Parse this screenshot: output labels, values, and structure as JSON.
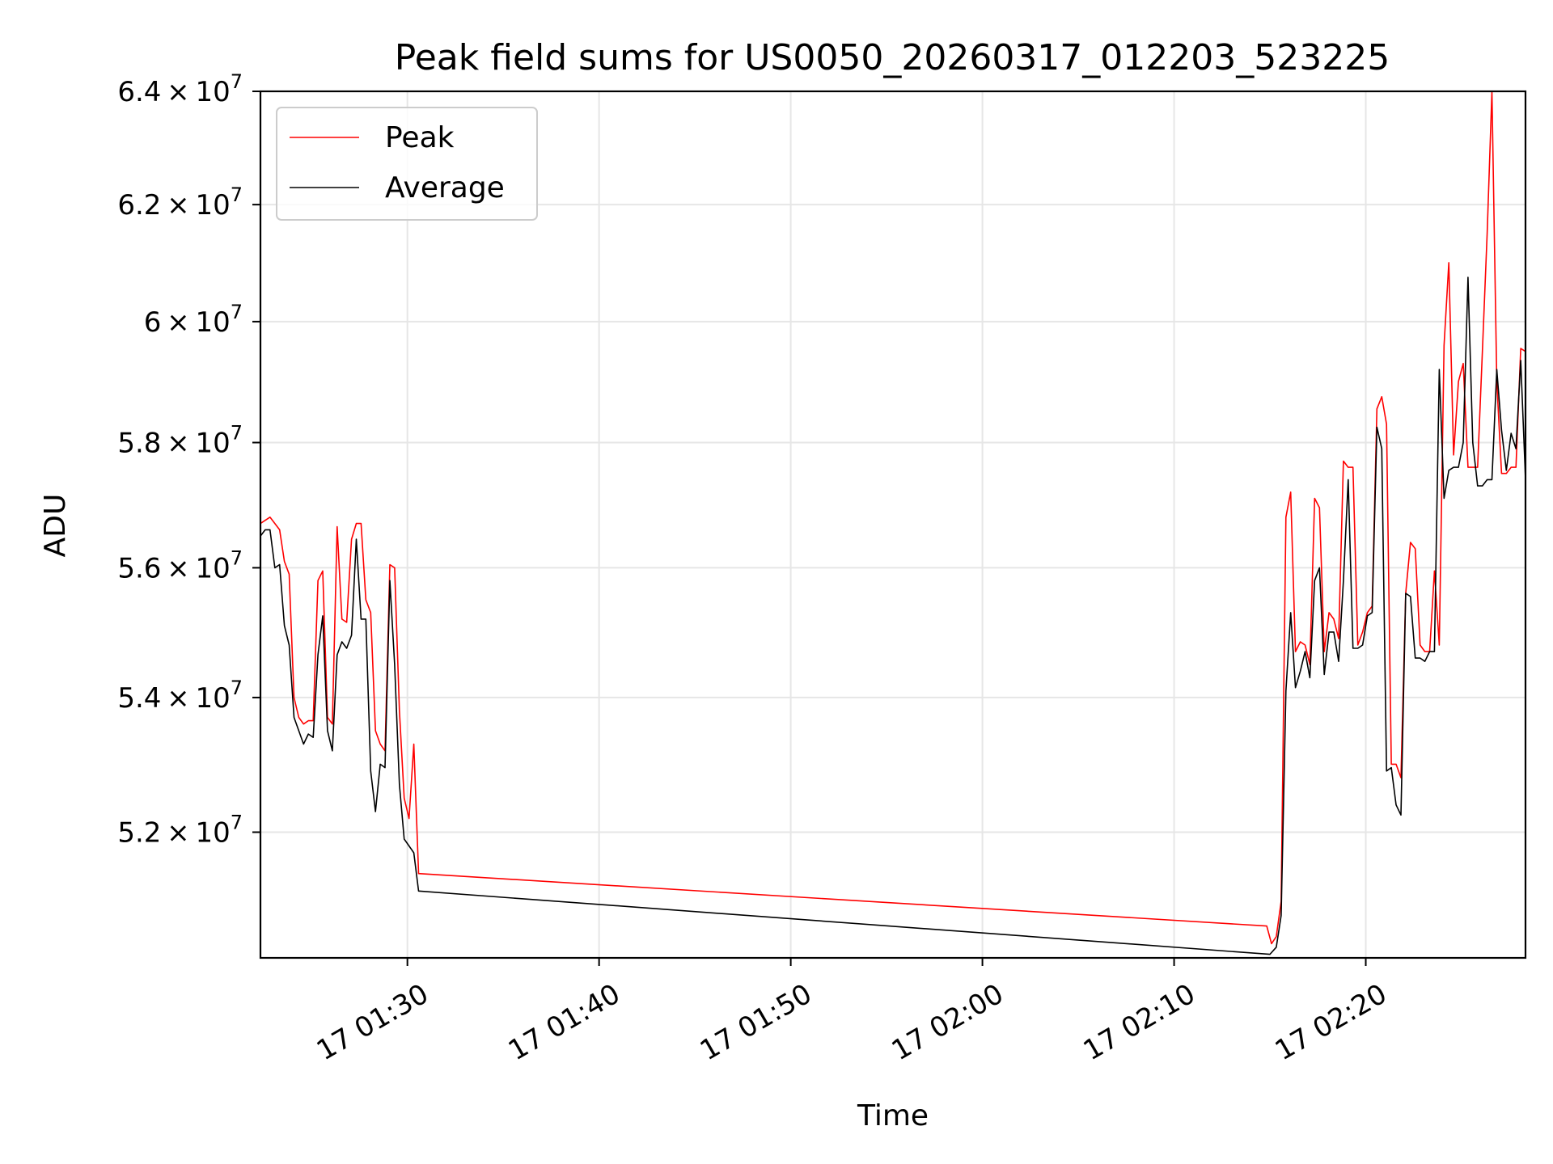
{
  "chart_data": {
    "type": "line",
    "title": "Peak field sums for US0050_20260317_012203_523225",
    "xlabel": "Time",
    "ylabel": "ADU",
    "y_scale": "log",
    "ylim": [
      50200000,
      64000000
    ],
    "xlim": [
      "2026-03-17T01:22:20",
      "2026-03-17T02:28:20"
    ],
    "x_ticks": [
      {
        "value": "2026-03-17T01:30:00",
        "label": "17 01:30"
      },
      {
        "value": "2026-03-17T01:40:00",
        "label": "17 01:40"
      },
      {
        "value": "2026-03-17T01:50:00",
        "label": "17 01:50"
      },
      {
        "value": "2026-03-17T02:00:00",
        "label": "17 02:00"
      },
      {
        "value": "2026-03-17T02:10:00",
        "label": "17 02:10"
      },
      {
        "value": "2026-03-17T02:20:00",
        "label": "17 02:20"
      }
    ],
    "y_ticks": [
      {
        "value": 52000000,
        "mantissa": "5.2",
        "exponent": "7"
      },
      {
        "value": 54000000,
        "mantissa": "5.4",
        "exponent": "7"
      },
      {
        "value": 56000000,
        "mantissa": "5.6",
        "exponent": "7"
      },
      {
        "value": 58000000,
        "mantissa": "5.8",
        "exponent": "7"
      },
      {
        "value": 60000000,
        "mantissa": "6",
        "exponent": "7"
      },
      {
        "value": 62000000,
        "mantissa": "6.2",
        "exponent": "7"
      },
      {
        "value": 64000000,
        "mantissa": "6.4",
        "exponent": "7"
      }
    ],
    "grid": true,
    "legend_position": "top-left",
    "series": [
      {
        "name": "Peak",
        "color": "#ff0000",
        "points": [
          [
            "2026-03-17T01:22:20",
            56700000
          ],
          [
            "2026-03-17T01:22:35",
            56750000
          ],
          [
            "2026-03-17T01:22:50",
            56800000
          ],
          [
            "2026-03-17T01:23:05",
            56700000
          ],
          [
            "2026-03-17T01:23:20",
            56600000
          ],
          [
            "2026-03-17T01:23:35",
            56100000
          ],
          [
            "2026-03-17T01:23:50",
            55900000
          ],
          [
            "2026-03-17T01:24:05",
            54000000
          ],
          [
            "2026-03-17T01:24:20",
            53700000
          ],
          [
            "2026-03-17T01:24:35",
            53600000
          ],
          [
            "2026-03-17T01:24:50",
            53650000
          ],
          [
            "2026-03-17T01:25:05",
            53650000
          ],
          [
            "2026-03-17T01:25:20",
            55800000
          ],
          [
            "2026-03-17T01:25:35",
            55950000
          ],
          [
            "2026-03-17T01:25:50",
            53700000
          ],
          [
            "2026-03-17T01:26:05",
            53600000
          ],
          [
            "2026-03-17T01:26:20",
            56650000
          ],
          [
            "2026-03-17T01:26:35",
            55200000
          ],
          [
            "2026-03-17T01:26:50",
            55150000
          ],
          [
            "2026-03-17T01:27:05",
            56450000
          ],
          [
            "2026-03-17T01:27:20",
            56700000
          ],
          [
            "2026-03-17T01:27:35",
            56700000
          ],
          [
            "2026-03-17T01:27:50",
            55500000
          ],
          [
            "2026-03-17T01:28:05",
            55300000
          ],
          [
            "2026-03-17T01:28:20",
            53500000
          ],
          [
            "2026-03-17T01:28:35",
            53300000
          ],
          [
            "2026-03-17T01:28:50",
            53200000
          ],
          [
            "2026-03-17T01:29:05",
            56050000
          ],
          [
            "2026-03-17T01:29:20",
            56000000
          ],
          [
            "2026-03-17T01:29:35",
            53800000
          ],
          [
            "2026-03-17T01:29:50",
            52500000
          ],
          [
            "2026-03-17T01:30:05",
            52200000
          ],
          [
            "2026-03-17T01:30:20",
            53300000
          ],
          [
            "2026-03-17T01:30:35",
            51400000
          ],
          [
            "2026-03-17T02:14:50",
            50650000
          ],
          [
            "2026-03-17T02:15:05",
            50400000
          ],
          [
            "2026-03-17T02:15:20",
            50500000
          ],
          [
            "2026-03-17T02:15:35",
            51000000
          ],
          [
            "2026-03-17T02:15:50",
            56800000
          ],
          [
            "2026-03-17T02:16:05",
            57200000
          ],
          [
            "2026-03-17T02:16:20",
            54700000
          ],
          [
            "2026-03-17T02:16:35",
            54850000
          ],
          [
            "2026-03-17T02:16:50",
            54800000
          ],
          [
            "2026-03-17T02:17:05",
            54500000
          ],
          [
            "2026-03-17T02:17:20",
            57100000
          ],
          [
            "2026-03-17T02:17:35",
            56950000
          ],
          [
            "2026-03-17T02:17:50",
            54700000
          ],
          [
            "2026-03-17T02:18:05",
            55300000
          ],
          [
            "2026-03-17T02:18:20",
            55200000
          ],
          [
            "2026-03-17T02:18:35",
            54900000
          ],
          [
            "2026-03-17T02:18:50",
            57700000
          ],
          [
            "2026-03-17T02:19:05",
            57600000
          ],
          [
            "2026-03-17T02:19:20",
            57600000
          ],
          [
            "2026-03-17T02:19:35",
            54800000
          ],
          [
            "2026-03-17T02:19:50",
            55000000
          ],
          [
            "2026-03-17T02:20:05",
            55300000
          ],
          [
            "2026-03-17T02:20:20",
            55400000
          ],
          [
            "2026-03-17T02:20:35",
            58550000
          ],
          [
            "2026-03-17T02:20:50",
            58750000
          ],
          [
            "2026-03-17T02:21:05",
            58300000
          ],
          [
            "2026-03-17T02:21:20",
            53000000
          ],
          [
            "2026-03-17T02:21:35",
            53000000
          ],
          [
            "2026-03-17T02:21:50",
            52800000
          ],
          [
            "2026-03-17T02:22:05",
            55600000
          ],
          [
            "2026-03-17T02:22:20",
            56400000
          ],
          [
            "2026-03-17T02:22:35",
            56300000
          ],
          [
            "2026-03-17T02:22:50",
            54800000
          ],
          [
            "2026-03-17T02:23:05",
            54700000
          ],
          [
            "2026-03-17T02:23:20",
            54700000
          ],
          [
            "2026-03-17T02:23:35",
            55950000
          ],
          [
            "2026-03-17T02:23:50",
            54800000
          ],
          [
            "2026-03-17T02:24:05",
            59600000
          ],
          [
            "2026-03-17T02:24:20",
            61000000
          ],
          [
            "2026-03-17T02:24:35",
            57800000
          ],
          [
            "2026-03-17T02:24:50",
            59000000
          ],
          [
            "2026-03-17T02:25:05",
            59300000
          ],
          [
            "2026-03-17T02:25:20",
            57600000
          ],
          [
            "2026-03-17T02:25:35",
            57600000
          ],
          [
            "2026-03-17T02:25:50",
            57600000
          ],
          [
            "2026-03-17T02:26:05",
            59500000
          ],
          [
            "2026-03-17T02:26:20",
            61500000
          ],
          [
            "2026-03-17T02:26:35",
            64000000
          ],
          [
            "2026-03-17T02:26:50",
            59000000
          ],
          [
            "2026-03-17T02:27:05",
            57500000
          ],
          [
            "2026-03-17T02:27:20",
            57500000
          ],
          [
            "2026-03-17T02:27:35",
            57600000
          ],
          [
            "2026-03-17T02:27:50",
            57600000
          ],
          [
            "2026-03-17T02:28:05",
            59550000
          ],
          [
            "2026-03-17T02:28:20",
            59500000
          ]
        ]
      },
      {
        "name": "Average",
        "color": "#000000",
        "points": [
          [
            "2026-03-17T01:22:20",
            56500000
          ],
          [
            "2026-03-17T01:22:35",
            56600000
          ],
          [
            "2026-03-17T01:22:50",
            56600000
          ],
          [
            "2026-03-17T01:23:05",
            56000000
          ],
          [
            "2026-03-17T01:23:20",
            56050000
          ],
          [
            "2026-03-17T01:23:35",
            55100000
          ],
          [
            "2026-03-17T01:23:50",
            54800000
          ],
          [
            "2026-03-17T01:24:05",
            53700000
          ],
          [
            "2026-03-17T01:24:20",
            53500000
          ],
          [
            "2026-03-17T01:24:35",
            53300000
          ],
          [
            "2026-03-17T01:24:50",
            53450000
          ],
          [
            "2026-03-17T01:25:05",
            53400000
          ],
          [
            "2026-03-17T01:25:20",
            54650000
          ],
          [
            "2026-03-17T01:25:35",
            55250000
          ],
          [
            "2026-03-17T01:25:50",
            53500000
          ],
          [
            "2026-03-17T01:26:05",
            53200000
          ],
          [
            "2026-03-17T01:26:20",
            54650000
          ],
          [
            "2026-03-17T01:26:35",
            54850000
          ],
          [
            "2026-03-17T01:26:50",
            54750000
          ],
          [
            "2026-03-17T01:27:05",
            54950000
          ],
          [
            "2026-03-17T01:27:20",
            56450000
          ],
          [
            "2026-03-17T01:27:35",
            55200000
          ],
          [
            "2026-03-17T01:27:50",
            55200000
          ],
          [
            "2026-03-17T01:28:05",
            52900000
          ],
          [
            "2026-03-17T01:28:20",
            52300000
          ],
          [
            "2026-03-17T01:28:35",
            53000000
          ],
          [
            "2026-03-17T01:28:50",
            52950000
          ],
          [
            "2026-03-17T01:29:05",
            55800000
          ],
          [
            "2026-03-17T01:29:20",
            54500000
          ],
          [
            "2026-03-17T01:29:35",
            52700000
          ],
          [
            "2026-03-17T01:29:50",
            51900000
          ],
          [
            "2026-03-17T01:30:05",
            51800000
          ],
          [
            "2026-03-17T01:30:20",
            51700000
          ],
          [
            "2026-03-17T01:30:35",
            51150000
          ],
          [
            "2026-03-17T02:15:00",
            50250000
          ],
          [
            "2026-03-17T02:15:20",
            50350000
          ],
          [
            "2026-03-17T02:15:35",
            50800000
          ],
          [
            "2026-03-17T02:15:50",
            54100000
          ],
          [
            "2026-03-17T02:16:05",
            55300000
          ],
          [
            "2026-03-17T02:16:20",
            54150000
          ],
          [
            "2026-03-17T02:16:35",
            54400000
          ],
          [
            "2026-03-17T02:16:50",
            54700000
          ],
          [
            "2026-03-17T02:17:05",
            54300000
          ],
          [
            "2026-03-17T02:17:20",
            55800000
          ],
          [
            "2026-03-17T02:17:35",
            56000000
          ],
          [
            "2026-03-17T02:17:50",
            54350000
          ],
          [
            "2026-03-17T02:18:05",
            55000000
          ],
          [
            "2026-03-17T02:18:20",
            55000000
          ],
          [
            "2026-03-17T02:18:35",
            54550000
          ],
          [
            "2026-03-17T02:18:50",
            55800000
          ],
          [
            "2026-03-17T02:19:05",
            57400000
          ],
          [
            "2026-03-17T02:19:20",
            54750000
          ],
          [
            "2026-03-17T02:19:35",
            54750000
          ],
          [
            "2026-03-17T02:19:50",
            54800000
          ],
          [
            "2026-03-17T02:20:05",
            55250000
          ],
          [
            "2026-03-17T02:20:20",
            55300000
          ],
          [
            "2026-03-17T02:20:35",
            58250000
          ],
          [
            "2026-03-17T02:20:50",
            57900000
          ],
          [
            "2026-03-17T02:21:05",
            52900000
          ],
          [
            "2026-03-17T02:21:20",
            52950000
          ],
          [
            "2026-03-17T02:21:35",
            52400000
          ],
          [
            "2026-03-17T02:21:50",
            52250000
          ],
          [
            "2026-03-17T02:22:05",
            55600000
          ],
          [
            "2026-03-17T02:22:20",
            55550000
          ],
          [
            "2026-03-17T02:22:35",
            54600000
          ],
          [
            "2026-03-17T02:22:50",
            54600000
          ],
          [
            "2026-03-17T02:23:05",
            54550000
          ],
          [
            "2026-03-17T02:23:20",
            54700000
          ],
          [
            "2026-03-17T02:23:35",
            54700000
          ],
          [
            "2026-03-17T02:23:50",
            59200000
          ],
          [
            "2026-03-17T02:24:05",
            57100000
          ],
          [
            "2026-03-17T02:24:20",
            57550000
          ],
          [
            "2026-03-17T02:24:35",
            57600000
          ],
          [
            "2026-03-17T02:24:50",
            57600000
          ],
          [
            "2026-03-17T02:25:05",
            58000000
          ],
          [
            "2026-03-17T02:25:20",
            60750000
          ],
          [
            "2026-03-17T02:25:35",
            58000000
          ],
          [
            "2026-03-17T02:25:50",
            57300000
          ],
          [
            "2026-03-17T02:26:05",
            57300000
          ],
          [
            "2026-03-17T02:26:20",
            57400000
          ],
          [
            "2026-03-17T02:26:35",
            57400000
          ],
          [
            "2026-03-17T02:26:50",
            59200000
          ],
          [
            "2026-03-17T02:27:05",
            58200000
          ],
          [
            "2026-03-17T02:27:20",
            57550000
          ],
          [
            "2026-03-17T02:27:35",
            58150000
          ],
          [
            "2026-03-17T02:27:50",
            57900000
          ],
          [
            "2026-03-17T02:28:05",
            59350000
          ],
          [
            "2026-03-17T02:28:20",
            57400000
          ]
        ]
      }
    ]
  }
}
